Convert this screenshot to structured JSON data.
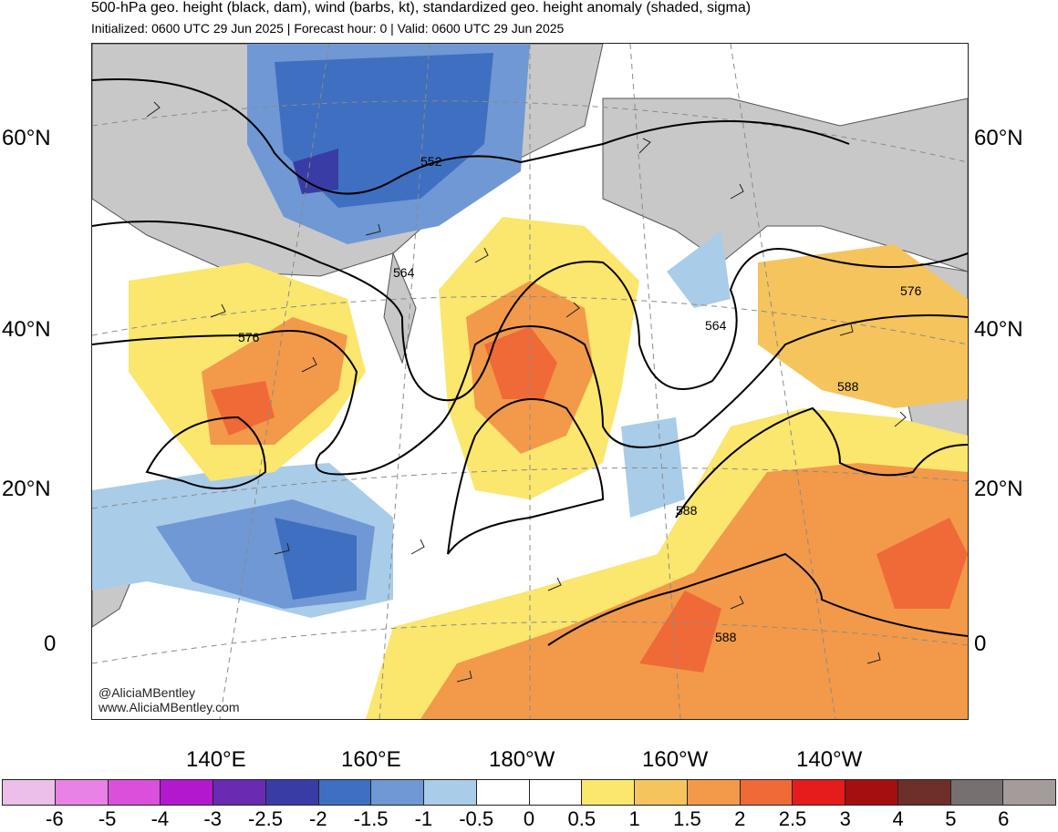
{
  "header": {
    "title": "500-hPa geo. height (black, dam), wind (barbs, kt), standardized geo. height anomaly (shaded, sigma)",
    "subtitle": "Initialized: 0600 UTC 29 Jun 2025 | Forecast hour: 0 | Valid: 0600 UTC 29 Jun 2025"
  },
  "map": {
    "lat_labels": [
      "60°N",
      "40°N",
      "20°N",
      "0"
    ],
    "lon_labels": [
      "140°E",
      "160°E",
      "180°W",
      "160°W",
      "140°W"
    ],
    "contour_labels": [
      "552",
      "564",
      "576",
      "564",
      "576",
      "588",
      "588",
      "588"
    ],
    "credit_handle": "@AliciaMBentley",
    "credit_url": "www.AliciaMBentley.com",
    "land_color": "#c8c8c8",
    "contour_color": "#000000"
  },
  "colorbar": {
    "ticks": [
      "-6",
      "-5",
      "-4",
      "-3",
      "-2.5",
      "-2",
      "-1.5",
      "-1",
      "-0.5",
      "0",
      "0.5",
      "1",
      "1.5",
      "2",
      "2.5",
      "3",
      "4",
      "5",
      "6"
    ],
    "colors": [
      "#ebbfe8",
      "#e882e6",
      "#da50da",
      "#b318cf",
      "#6a2bb2",
      "#3a3ca6",
      "#3f6fc0",
      "#6f98d4",
      "#a9cce8",
      "#ffffff",
      "#ffffff",
      "#fbe66e",
      "#f5c45c",
      "#f29a4a",
      "#ef6a37",
      "#e61c1c",
      "#a50f0f",
      "#6e2e2a",
      "#767070",
      "#a49b9b"
    ]
  }
}
